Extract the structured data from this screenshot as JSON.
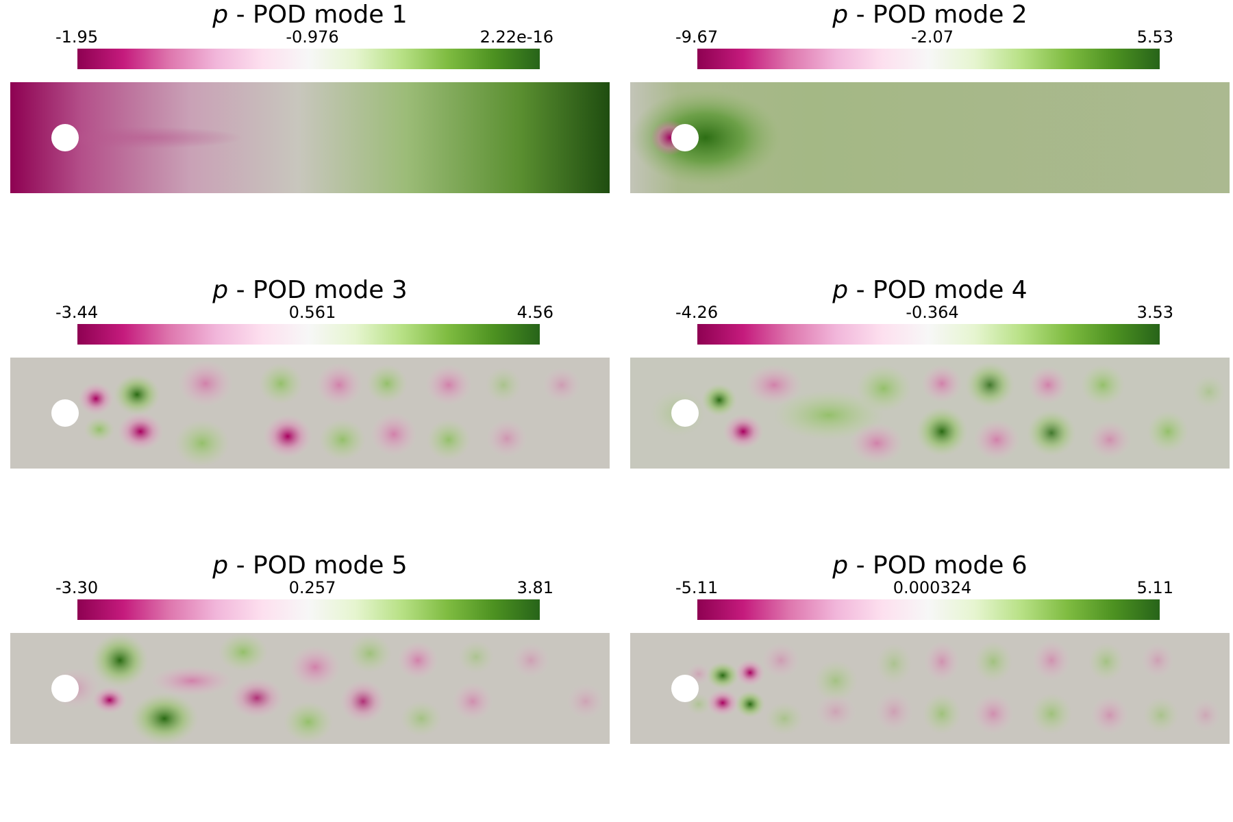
{
  "panels": [
    {
      "var": "p",
      "title": " - POD mode 1",
      "ticks": {
        "min": "-1.95",
        "mid": "-0.976",
        "max": "2.22e-16"
      }
    },
    {
      "var": "p",
      "title": " - POD mode 2",
      "ticks": {
        "min": "-9.67",
        "mid": "-2.07",
        "max": "5.53"
      }
    },
    {
      "var": "p",
      "title": " - POD mode 3",
      "ticks": {
        "min": "-3.44",
        "mid": "0.561",
        "max": "4.56"
      }
    },
    {
      "var": "p",
      "title": " - POD mode 4",
      "ticks": {
        "min": "-4.26",
        "mid": "-0.364",
        "max": "3.53"
      }
    },
    {
      "var": "p",
      "title": " - POD mode 5",
      "ticks": {
        "min": "-3.30",
        "mid": "0.257",
        "max": "3.81"
      }
    },
    {
      "var": "p",
      "title": " - POD mode 6",
      "ticks": {
        "min": "-5.11",
        "mid": "0.000324",
        "max": "5.11"
      }
    }
  ],
  "colormap": {
    "name": "PiYG",
    "low": "#8e0152",
    "mid": "#f7f7f7",
    "high": "#276419",
    "background": "#c9c6bf"
  }
}
